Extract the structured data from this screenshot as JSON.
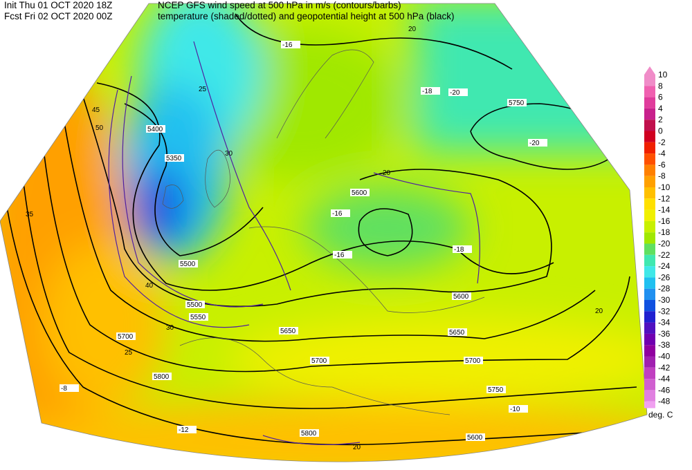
{
  "header": {
    "init": "Init  Thu 01 OCT 2020 18Z",
    "fcst": "Fcst Fri 02 OCT 2020 00Z",
    "title_line1": "NCEP GFS wind speed at 500 hPa in m/s (contours/barbs)",
    "title_line2": "temperature (shaded/dotted) and geopotential height at 500 hPa (black)"
  },
  "colorbar": {
    "levels": [
      10,
      8,
      6,
      4,
      2,
      0,
      -2,
      -4,
      -6,
      -8,
      -10,
      -12,
      -14,
      -16,
      -18,
      -20,
      -22,
      -24,
      -26,
      -28,
      -30,
      -32,
      -34,
      -36,
      -38,
      -40,
      -42,
      -44,
      -46,
      -48
    ],
    "colors": [
      "#f08cc8",
      "#f060b0",
      "#e03c9c",
      "#c8208c",
      "#c0104c",
      "#d00020",
      "#f02000",
      "#ff5000",
      "#ff8000",
      "#ffa000",
      "#ffc000",
      "#ffe000",
      "#f0f000",
      "#c8f000",
      "#a0e800",
      "#60e060",
      "#40e8b0",
      "#40e8e8",
      "#20c0f0",
      "#2090f0",
      "#1050e0",
      "#2020d0",
      "#5010c0",
      "#7000b0",
      "#9000a0",
      "#a020b0",
      "#c040c0",
      "#d060d0",
      "#e080e0",
      "#f0a0f0"
    ],
    "units": "deg. C"
  },
  "height_labels": [
    5400,
    5350,
    5500,
    5550,
    5600,
    5600,
    5650,
    5650,
    5700,
    5700,
    5700,
    5750,
    5750,
    5800,
    5800,
    5600,
    5500
  ],
  "temperature_labels": [
    -16,
    -18,
    -20,
    -16,
    -16,
    -18,
    -20,
    -12,
    -10,
    -8
  ],
  "wind_labels": [
    20,
    25,
    30,
    45,
    50,
    35,
    40,
    20,
    20,
    25,
    30,
    20
  ]
}
